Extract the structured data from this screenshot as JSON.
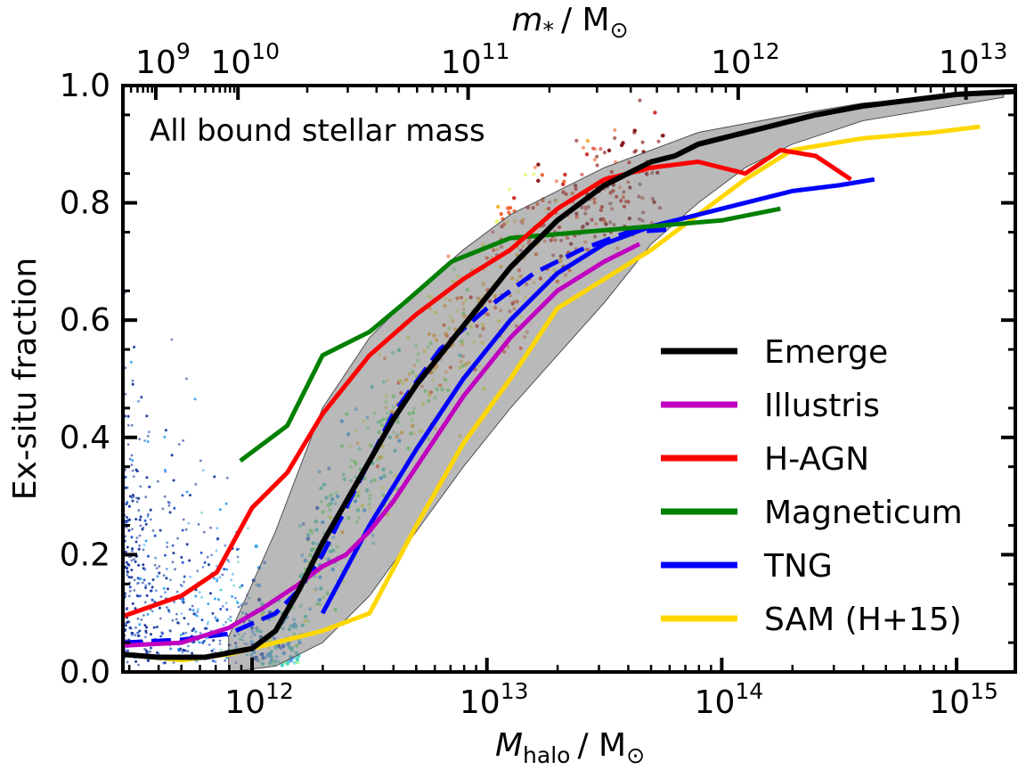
{
  "chart_data": {
    "type": "line",
    "title": "",
    "annotation": "All bound stellar mass",
    "xlabel_main": "M",
    "xlabel_sub": "halo",
    "xlabel_unit": "/ M",
    "xlabel_unit_sub": "⊙",
    "ylabel": "Ex-situ fraction",
    "top_xlabel_main": "m",
    "top_xlabel_star": "*",
    "top_xlabel_unit": "/ M",
    "top_xlabel_unit_sub": "⊙",
    "xscale": "log",
    "xlim_log10": [
      11.45,
      15.25
    ],
    "ylim": [
      0.0,
      1.0
    ],
    "y_ticks": [
      0.0,
      0.2,
      0.4,
      0.6,
      0.8,
      1.0
    ],
    "y_tick_labels": [
      "0.0",
      "0.2",
      "0.4",
      "0.6",
      "0.8",
      "1.0"
    ],
    "x_ticks_log10": [
      12,
      13,
      14,
      15
    ],
    "x_tick_base": "10",
    "x_tick_exps": [
      "12",
      "13",
      "14",
      "15"
    ],
    "top_ticks_halo_log10": [
      11.59,
      11.94,
      12.92,
      14.07,
      15.04
    ],
    "top_tick_base": "10",
    "top_tick_exps": [
      "9",
      "10",
      "11",
      "12",
      "13"
    ],
    "legend_position": "lower-right",
    "series": [
      {
        "name": "Emerge",
        "color": "#000000",
        "dash": false,
        "x_log10": [
          11.45,
          11.6,
          11.8,
          12.0,
          12.1,
          12.2,
          12.3,
          12.4,
          12.5,
          12.6,
          12.7,
          12.8,
          12.9,
          13.0,
          13.1,
          13.2,
          13.3,
          13.4,
          13.5,
          13.6,
          13.7,
          13.8,
          13.9,
          14.0,
          14.2,
          14.4,
          14.6,
          14.8,
          15.0,
          15.25
        ],
        "values": [
          0.03,
          0.025,
          0.025,
          0.04,
          0.07,
          0.14,
          0.22,
          0.29,
          0.36,
          0.43,
          0.49,
          0.54,
          0.59,
          0.64,
          0.69,
          0.73,
          0.77,
          0.8,
          0.83,
          0.85,
          0.87,
          0.88,
          0.9,
          0.91,
          0.93,
          0.95,
          0.965,
          0.975,
          0.985,
          0.99
        ]
      },
      {
        "name": "Illustris",
        "color": "#c000c0",
        "dash": false,
        "x_log10": [
          11.45,
          11.7,
          11.9,
          12.05,
          12.2,
          12.3,
          12.4,
          12.5,
          12.6,
          12.7,
          12.8,
          12.9,
          13.0,
          13.1,
          13.2,
          13.3,
          13.5,
          13.65
        ],
        "values": [
          0.045,
          0.05,
          0.075,
          0.11,
          0.15,
          0.18,
          0.2,
          0.24,
          0.29,
          0.35,
          0.41,
          0.47,
          0.52,
          0.57,
          0.61,
          0.65,
          0.7,
          0.73
        ]
      },
      {
        "name": "H-AGN",
        "color": "#ff0000",
        "dash": false,
        "x_log10": [
          11.45,
          11.7,
          11.85,
          12.0,
          12.15,
          12.3,
          12.5,
          12.7,
          12.9,
          13.1,
          13.3,
          13.5,
          13.7,
          13.9,
          14.1,
          14.25,
          14.4,
          14.55
        ],
        "values": [
          0.095,
          0.13,
          0.17,
          0.28,
          0.34,
          0.44,
          0.54,
          0.61,
          0.67,
          0.72,
          0.79,
          0.84,
          0.86,
          0.87,
          0.85,
          0.89,
          0.88,
          0.84
        ]
      },
      {
        "name": "Magneticum",
        "color": "#008000",
        "dash": false,
        "x_log10": [
          11.95,
          12.15,
          12.3,
          12.5,
          12.65,
          12.85,
          13.1,
          13.4,
          13.7,
          14.0,
          14.25
        ],
        "values": [
          0.36,
          0.42,
          0.54,
          0.58,
          0.63,
          0.7,
          0.74,
          0.75,
          0.76,
          0.77,
          0.79
        ]
      },
      {
        "name": "TNG",
        "color": "#0000ff",
        "dash": false,
        "x_log10": [
          12.3,
          12.5,
          12.7,
          12.9,
          13.1,
          13.3,
          13.5,
          13.7,
          13.9,
          14.1,
          14.3,
          14.5,
          14.65
        ],
        "values": [
          0.1,
          0.25,
          0.38,
          0.5,
          0.6,
          0.68,
          0.73,
          0.76,
          0.78,
          0.8,
          0.82,
          0.83,
          0.84
        ]
      },
      {
        "name": "TNG (dashed)",
        "color": "#0000ff",
        "dash": true,
        "legend": false,
        "x_log10": [
          11.45,
          11.7,
          11.9,
          12.1,
          12.2,
          12.3,
          12.4,
          12.5,
          12.6,
          12.8,
          13.0,
          13.2,
          13.4,
          13.6,
          13.8
        ],
        "values": [
          0.05,
          0.055,
          0.065,
          0.1,
          0.14,
          0.2,
          0.28,
          0.36,
          0.44,
          0.55,
          0.62,
          0.68,
          0.72,
          0.75,
          0.755
        ]
      },
      {
        "name": "SAM (H+15)",
        "color": "#ffd700",
        "dash": false,
        "x_log10": [
          11.45,
          11.7,
          11.9,
          12.1,
          12.3,
          12.5,
          12.7,
          12.9,
          13.1,
          13.3,
          13.5,
          13.7,
          13.9,
          14.1,
          14.3,
          14.6,
          14.9,
          15.1
        ],
        "values": [
          0.03,
          0.02,
          0.03,
          0.05,
          0.07,
          0.1,
          0.25,
          0.39,
          0.5,
          0.62,
          0.67,
          0.72,
          0.78,
          0.84,
          0.89,
          0.91,
          0.92,
          0.93
        ]
      }
    ],
    "band": {
      "name": "Emerge scatter",
      "x_log10": [
        11.9,
        12.1,
        12.3,
        12.5,
        12.7,
        12.9,
        13.1,
        13.3,
        13.5,
        13.7,
        13.9,
        14.1,
        14.3,
        14.6,
        14.9,
        15.2
      ],
      "upper": [
        0.06,
        0.24,
        0.45,
        0.57,
        0.65,
        0.72,
        0.78,
        0.82,
        0.86,
        0.89,
        0.92,
        0.935,
        0.95,
        0.97,
        0.98,
        0.99
      ],
      "lower": [
        0.0,
        0.01,
        0.05,
        0.13,
        0.24,
        0.35,
        0.45,
        0.54,
        0.63,
        0.73,
        0.8,
        0.86,
        0.9,
        0.94,
        0.96,
        0.98
      ]
    },
    "scatter_colors": [
      "#1f3fa0",
      "#2a5fcf",
      "#3fa9f5",
      "#4fd1c5",
      "#7cf07c",
      "#e8ef5a",
      "#f5b43c",
      "#ef6a3a",
      "#d0342c",
      "#8b1a1a"
    ]
  }
}
